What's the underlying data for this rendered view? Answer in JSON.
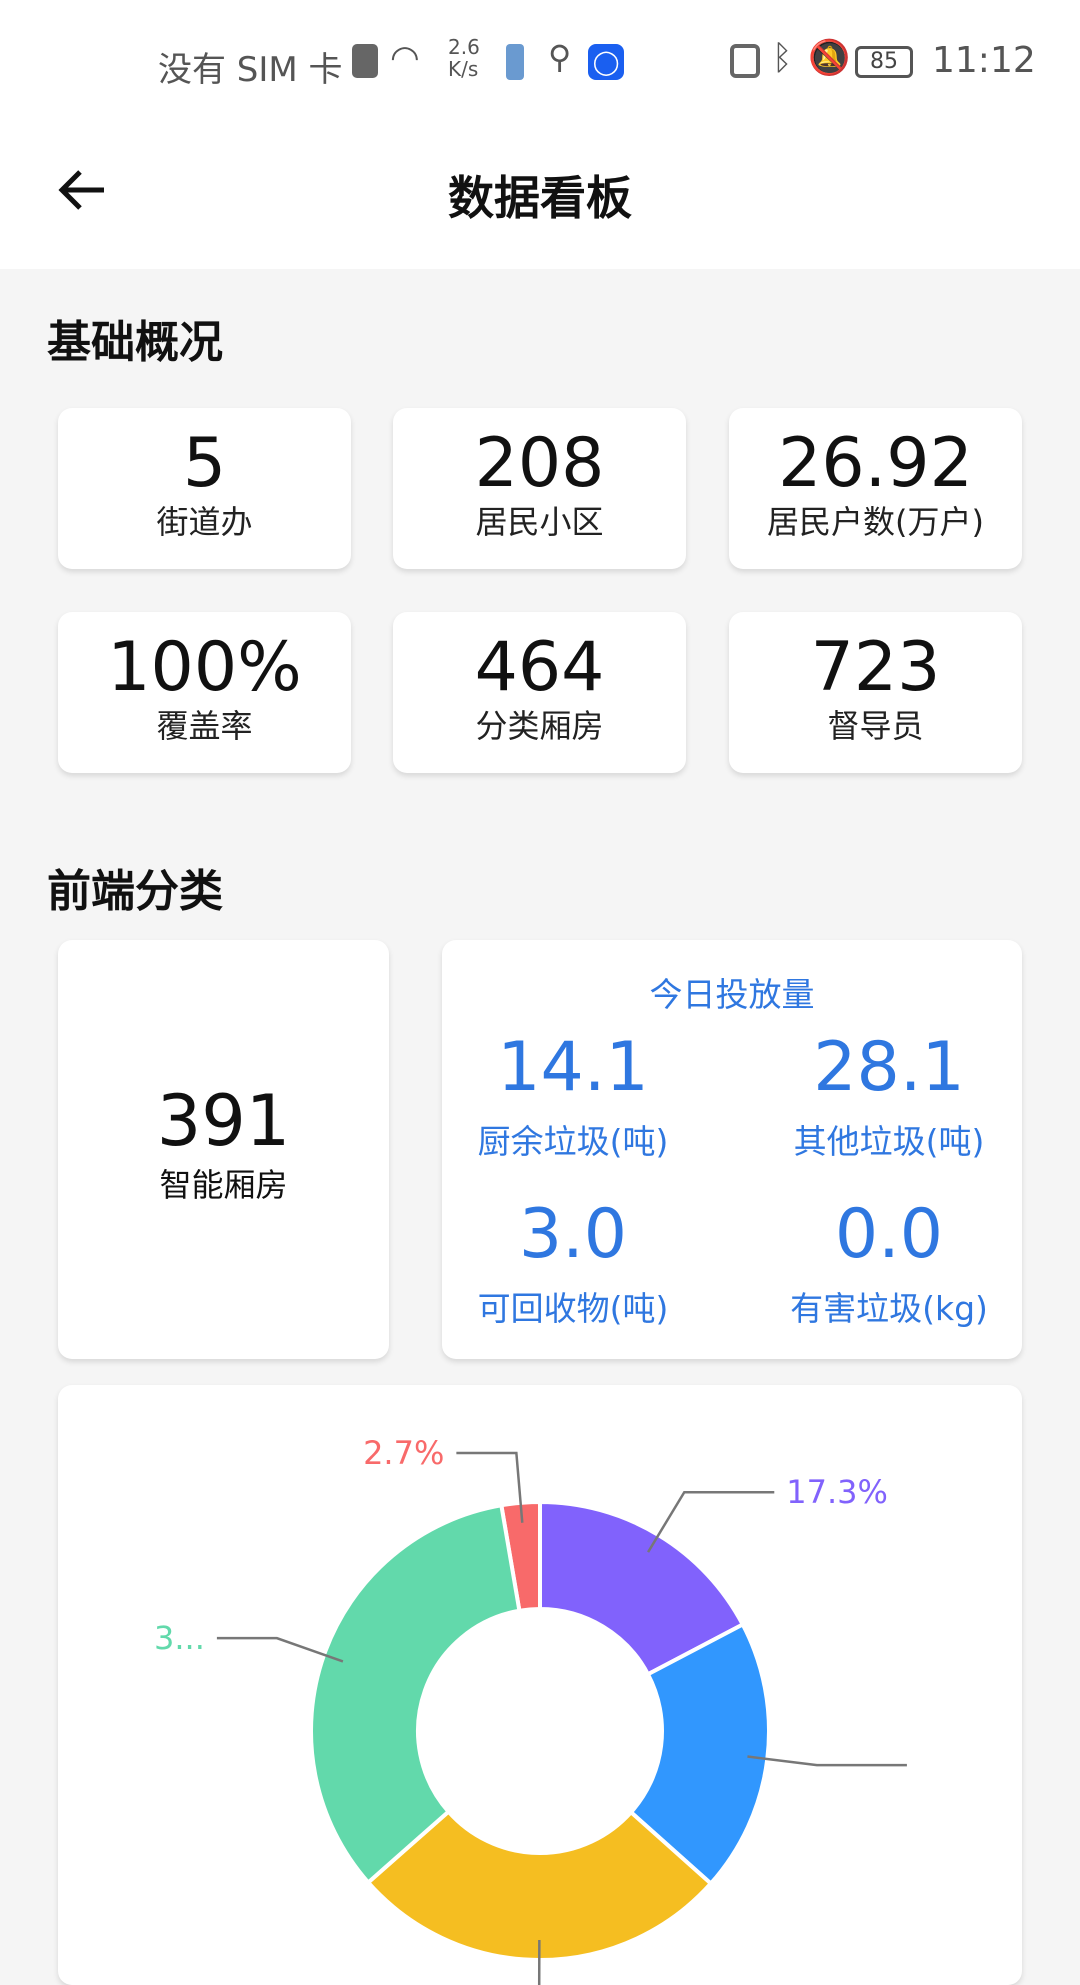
{
  "status_bar": {
    "carrier": "没有 SIM 卡",
    "net_speed": "2.6",
    "net_unit": "K/s",
    "battery": "85",
    "time": "11:12"
  },
  "header": {
    "title": "数据看板"
  },
  "basic": {
    "title": "基础概况",
    "stats": [
      {
        "value": "5",
        "label": "街道办"
      },
      {
        "value": "208",
        "label": "居民小区"
      },
      {
        "value": "26.92",
        "label": "居民户数(万户)"
      },
      {
        "value": "100%",
        "label": "覆盖率"
      },
      {
        "value": "464",
        "label": "分类厢房"
      },
      {
        "value": "723",
        "label": "督导员"
      }
    ]
  },
  "front": {
    "title": "前端分类",
    "smart": {
      "value": "391",
      "label": "智能厢房"
    },
    "today": {
      "title": "今日投放量",
      "items": [
        {
          "value": "14.1",
          "label": "厨余垃圾(吨)"
        },
        {
          "value": "28.1",
          "label": "其他垃圾(吨)"
        },
        {
          "value": "3.0",
          "label": "可回收物(吨)"
        },
        {
          "value": "0.0",
          "label": "有害垃圾(kg)"
        }
      ]
    }
  },
  "chart_data": {
    "type": "pie",
    "donut": true,
    "values_percent": [
      17.3,
      19.3,
      26.9,
      33.8,
      2.7
    ],
    "labels": [
      "17.3%",
      "",
      "",
      "3...",
      "2.7%"
    ],
    "colors": [
      "#8162fc",
      "#3197fe",
      "#f5be21",
      "#62d9ab",
      "#f86a6a"
    ]
  },
  "colors": {
    "accent": "#2f77e0",
    "background": "#f5f5f5"
  }
}
